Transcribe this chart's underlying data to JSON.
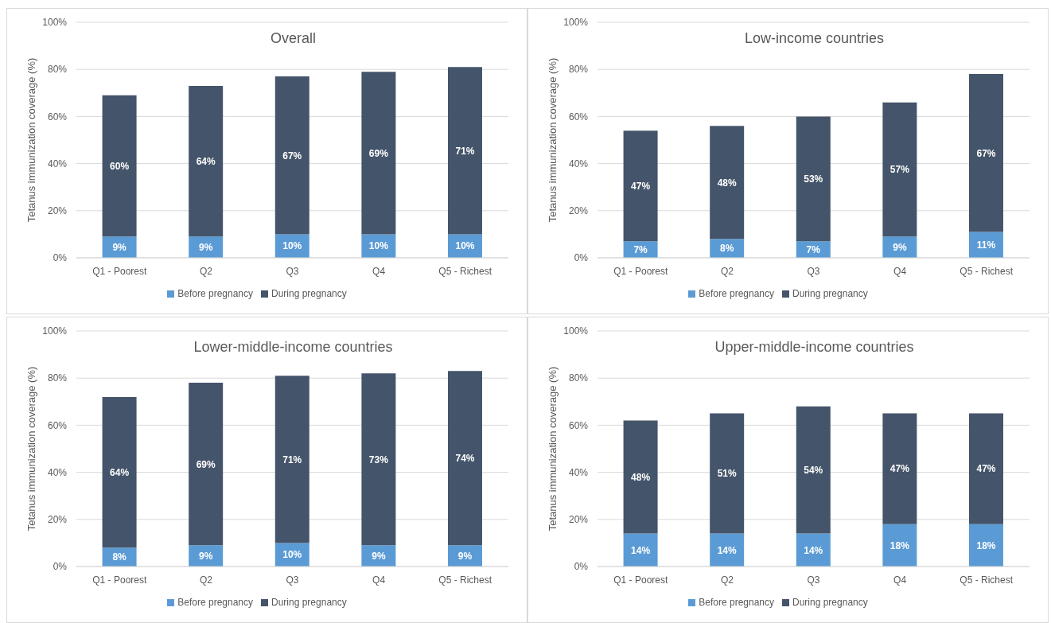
{
  "chart_data": [
    {
      "type": "bar",
      "title": "Overall",
      "ylabel": "Tetanus immunization coverage (%)",
      "categories": [
        "Q1 - Poorest",
        "Q2",
        "Q3",
        "Q4",
        "Q5 - Richest"
      ],
      "stacked": true,
      "ylim": [
        0,
        100
      ],
      "yticks": [
        {
          "value": 0,
          "label": "0%"
        },
        {
          "value": 20,
          "label": "20%"
        },
        {
          "value": 40,
          "label": "40%"
        },
        {
          "value": 60,
          "label": "60%"
        },
        {
          "value": 80,
          "label": "80%"
        },
        {
          "value": 100,
          "label": "100%"
        }
      ],
      "grid": "y",
      "legend": "bottom",
      "series": [
        {
          "name": "Before pregnancy",
          "color": "#5b9bd5",
          "values": [
            9,
            9,
            10,
            10,
            10
          ],
          "value_labels": [
            "9%",
            "9%",
            "10%",
            "10%",
            "10%"
          ]
        },
        {
          "name": "During pregnancy",
          "color": "#44546a",
          "values": [
            60,
            64,
            67,
            69,
            71
          ],
          "value_labels": [
            "60%",
            "64%",
            "67%",
            "69%",
            "71%"
          ]
        }
      ]
    },
    {
      "type": "bar",
      "title": "Low-income countries",
      "ylabel": "Tetanus immunization coverage (%)",
      "categories": [
        "Q1 - Poorest",
        "Q2",
        "Q3",
        "Q4",
        "Q5 - Richest"
      ],
      "stacked": true,
      "ylim": [
        0,
        100
      ],
      "yticks": [
        {
          "value": 0,
          "label": "0%"
        },
        {
          "value": 20,
          "label": "20%"
        },
        {
          "value": 40,
          "label": "40%"
        },
        {
          "value": 60,
          "label": "60%"
        },
        {
          "value": 80,
          "label": "80%"
        },
        {
          "value": 100,
          "label": "100%"
        }
      ],
      "grid": "y",
      "legend": "bottom",
      "series": [
        {
          "name": "Before pregnancy",
          "color": "#5b9bd5",
          "values": [
            7,
            8,
            7,
            9,
            11
          ],
          "value_labels": [
            "7%",
            "8%",
            "7%",
            "9%",
            "11%"
          ]
        },
        {
          "name": "During pregnancy",
          "color": "#44546a",
          "values": [
            47,
            48,
            53,
            57,
            67
          ],
          "value_labels": [
            "47%",
            "48%",
            "53%",
            "57%",
            "67%"
          ]
        }
      ]
    },
    {
      "type": "bar",
      "title": "Lower-middle-income countries",
      "ylabel": "Tetanus immunization coverage (%)",
      "categories": [
        "Q1 - Poorest",
        "Q2",
        "Q3",
        "Q4",
        "Q5 - Richest"
      ],
      "stacked": true,
      "ylim": [
        0,
        100
      ],
      "yticks": [
        {
          "value": 0,
          "label": "0%"
        },
        {
          "value": 20,
          "label": "20%"
        },
        {
          "value": 40,
          "label": "40%"
        },
        {
          "value": 60,
          "label": "60%"
        },
        {
          "value": 80,
          "label": "80%"
        },
        {
          "value": 100,
          "label": "100%"
        }
      ],
      "grid": "y",
      "legend": "bottom",
      "series": [
        {
          "name": "Before pregnancy",
          "color": "#5b9bd5",
          "values": [
            8,
            9,
            10,
            9,
            9
          ],
          "value_labels": [
            "8%",
            "9%",
            "10%",
            "9%",
            "9%"
          ]
        },
        {
          "name": "During pregnancy",
          "color": "#44546a",
          "values": [
            64,
            69,
            71,
            73,
            74
          ],
          "value_labels": [
            "64%",
            "69%",
            "71%",
            "73%",
            "74%"
          ]
        }
      ]
    },
    {
      "type": "bar",
      "title": "Upper-middle-income countries",
      "ylabel": "Tetanus immunization coverage (%)",
      "categories": [
        "Q1 - Poorest",
        "Q2",
        "Q3",
        "Q4",
        "Q5 - Richest"
      ],
      "stacked": true,
      "ylim": [
        0,
        100
      ],
      "yticks": [
        {
          "value": 0,
          "label": "0%"
        },
        {
          "value": 20,
          "label": "20%"
        },
        {
          "value": 40,
          "label": "40%"
        },
        {
          "value": 60,
          "label": "60%"
        },
        {
          "value": 80,
          "label": "80%"
        },
        {
          "value": 100,
          "label": "100%"
        }
      ],
      "grid": "y",
      "legend": "bottom",
      "series": [
        {
          "name": "Before pregnancy",
          "color": "#5b9bd5",
          "values": [
            14,
            14,
            14,
            18,
            18
          ],
          "value_labels": [
            "14%",
            "14%",
            "14%",
            "18%",
            "18%"
          ]
        },
        {
          "name": "During pregnancy",
          "color": "#44546a",
          "values": [
            48,
            51,
            54,
            47,
            47
          ],
          "value_labels": [
            "48%",
            "51%",
            "54%",
            "47%",
            "47%"
          ]
        }
      ]
    }
  ]
}
